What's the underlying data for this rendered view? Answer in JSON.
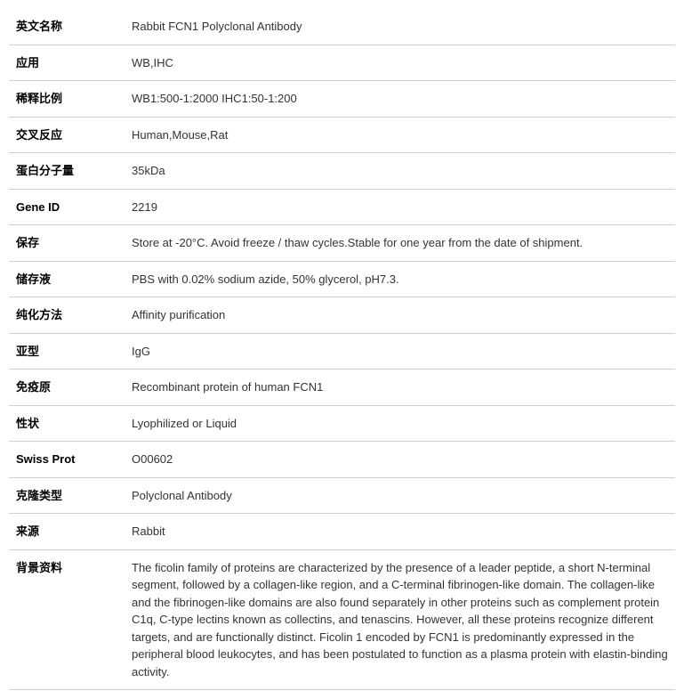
{
  "rows": [
    {
      "label": "英文名称",
      "value": "Rabbit FCN1 Polyclonal Antibody"
    },
    {
      "label": "应用",
      "value": "WB,IHC"
    },
    {
      "label": "稀释比例",
      "value": "WB1:500-1:2000 IHC1:50-1:200"
    },
    {
      "label": "交叉反应",
      "value": "Human,Mouse,Rat"
    },
    {
      "label": "蛋白分子量",
      "value": "35kDa"
    },
    {
      "label": "Gene ID",
      "value": "2219"
    },
    {
      "label": "保存",
      "value": "Store at -20°C. Avoid freeze / thaw cycles.Stable for one year from the date of shipment."
    },
    {
      "label": "储存液",
      "value": "PBS with 0.02% sodium azide, 50% glycerol, pH7.3."
    },
    {
      "label": "纯化方法",
      "value": "Affinity purification"
    },
    {
      "label": "亚型",
      "value": "IgG"
    },
    {
      "label": "免疫原",
      "value": "Recombinant protein of human FCN1"
    },
    {
      "label": "性状",
      "value": "Lyophilized or Liquid"
    },
    {
      "label": "Swiss Prot",
      "value": "O00602"
    },
    {
      "label": "克隆类型",
      "value": "Polyclonal Antibody"
    },
    {
      "label": "来源",
      "value": "Rabbit"
    },
    {
      "label": "背景资料",
      "value": "The ficolin family of proteins are characterized by the presence of a leader peptide, a short N-terminal segment, followed by a collagen-like region, and a C-terminal fibrinogen-like domain. The collagen-like and the fibrinogen-like domains are also found separately in other proteins such as complement protein C1q, C-type lectins known as collectins, and tenascins. However, all these proteins recognize different targets, and are functionally distinct. Ficolin 1 encoded by FCN1 is predominantly expressed in the peripheral blood leukocytes, and has been postulated to function as a plasma protein with elastin-binding activity."
    }
  ]
}
